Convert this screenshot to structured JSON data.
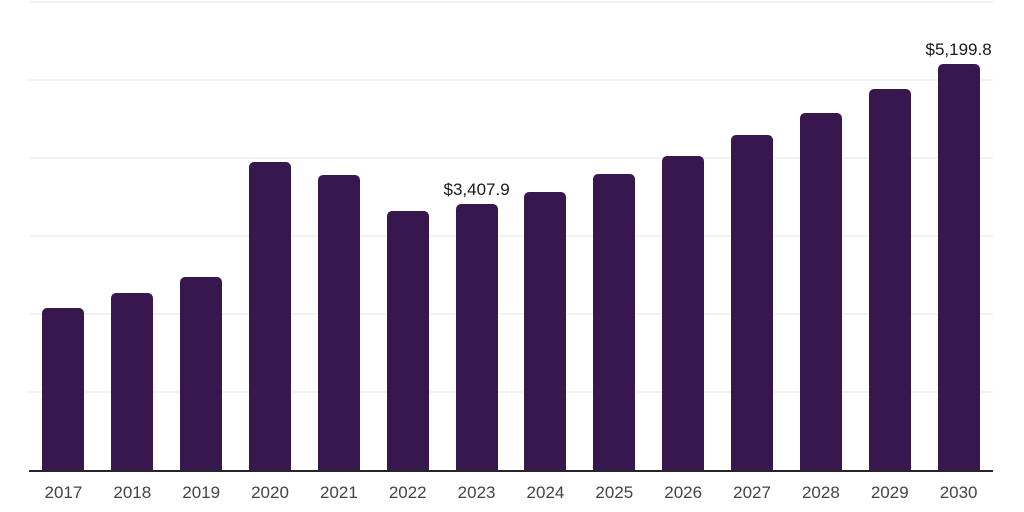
{
  "chart_data": {
    "type": "bar",
    "title": "",
    "xlabel": "",
    "ylabel": "",
    "categories": [
      "2017",
      "2018",
      "2019",
      "2020",
      "2021",
      "2022",
      "2023",
      "2024",
      "2025",
      "2026",
      "2027",
      "2028",
      "2029",
      "2030"
    ],
    "values": [
      2075,
      2270,
      2470,
      3955,
      3780,
      3325,
      3407.9,
      3570,
      3795,
      4030,
      4300,
      4580,
      4890,
      5199.8
    ],
    "data_labels": {
      "2023": "$3,407.9",
      "2030": "$5,199.8"
    },
    "ylim": [
      0,
      6000
    ],
    "gridline_values": [
      1000,
      2000,
      3000,
      4000,
      5000,
      6000
    ],
    "grid": true,
    "legend": false,
    "colors": {
      "bar": "#38164e",
      "gridline": "#f2f2f2",
      "axis_line": "#262626",
      "tick_label": "#444444",
      "data_label": "#1a1a1a",
      "background": "#ffffff"
    }
  }
}
